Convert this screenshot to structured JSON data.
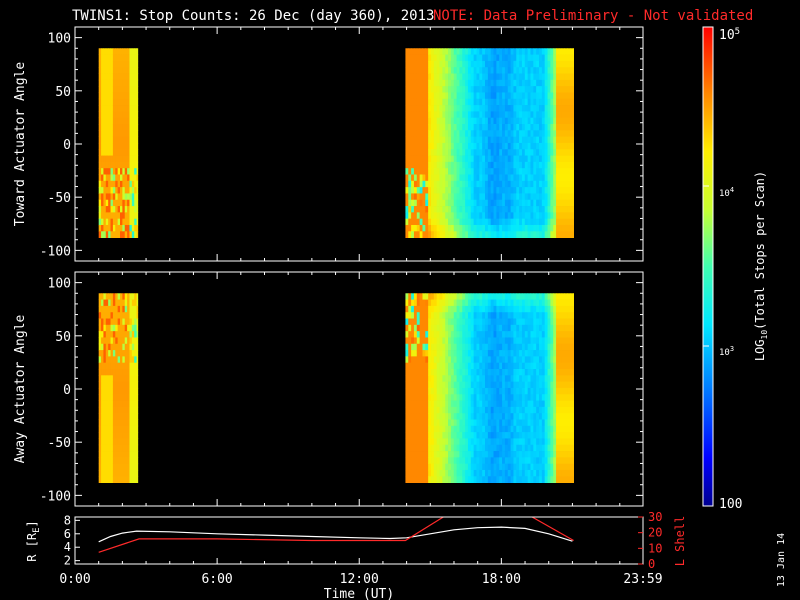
{
  "header": {
    "title": "TWINS1: Stop Counts: 26 Dec (day 360), 2013",
    "note": "NOTE: Data Preliminary - Not validated",
    "note_color": "#ff2a2a"
  },
  "side_date": "13 Jan 14",
  "chart_data": [
    {
      "type": "heatmap",
      "panel": "top",
      "ylabel": "Toward Actuator Angle",
      "ylim": [
        -110,
        110
      ],
      "yticks": [
        "100",
        "50",
        "0",
        "-50",
        "-100"
      ],
      "grid": false,
      "data_intervals_hours": [
        [
          1.0,
          2.65
        ],
        [
          13.95,
          21.05
        ]
      ],
      "angle_range": [
        -88,
        90
      ]
    },
    {
      "type": "heatmap",
      "panel": "middle",
      "ylabel": "Away Actuator Angle",
      "ylim": [
        -110,
        110
      ],
      "yticks": [
        "100",
        "50",
        "0",
        "-50",
        "-100"
      ],
      "grid": false,
      "data_intervals_hours": [
        [
          1.0,
          2.65
        ],
        [
          13.95,
          21.05
        ]
      ],
      "angle_range": [
        -88,
        90
      ]
    },
    {
      "type": "line",
      "panel": "bottom",
      "xlabel": "Time (UT)",
      "xlim": [
        0,
        23.98
      ],
      "xticks": [
        "0:00",
        "6:00",
        "12:00",
        "18:00",
        "23:59"
      ],
      "left_axis": {
        "label": "R [R",
        "label_sub": "E",
        "label_tail": "]",
        "ylim": [
          1.5,
          8.5
        ],
        "yticks": [
          "8",
          "6",
          "4",
          "2"
        ],
        "color": "#ffffff"
      },
      "right_axis": {
        "label": "L Shell",
        "ylim": [
          0,
          30
        ],
        "yticks": [
          "30",
          "20",
          "10",
          "0"
        ],
        "color": "#ff2a2a"
      },
      "series": [
        {
          "axis": "left",
          "color": "#ffffff",
          "x": [
            1.0,
            1.5,
            2.0,
            2.6,
            4,
            6,
            8,
            10,
            12,
            13.3,
            14.0,
            15,
            16,
            17,
            18,
            19,
            20,
            21.0
          ],
          "y": [
            4.8,
            5.6,
            6.1,
            6.4,
            6.3,
            6.0,
            5.8,
            5.6,
            5.4,
            5.3,
            5.4,
            6.0,
            6.6,
            6.9,
            7.0,
            6.8,
            6.0,
            4.9
          ]
        },
        {
          "axis": "right",
          "color": "#ff2a2a",
          "x": [
            1.0,
            2.7,
            6,
            10,
            13.95,
            15.55,
            15.9,
            19.3,
            21.05
          ],
          "y": [
            7.5,
            16.0,
            16.0,
            15.0,
            15.0,
            30,
            null,
            30,
            15.0
          ]
        }
      ]
    }
  ],
  "colorbar": {
    "label_pre": "LOG",
    "label_sub": "10",
    "label_post": "(Total Stops per Scan)",
    "range": [
      100,
      100000
    ],
    "tick_top_base": "10",
    "tick_top_exp": "5",
    "tick_mid_base": "10",
    "tick_mid_exp": "4",
    "tick_low_base": "10",
    "tick_low_exp": "3",
    "tick_bottom": "100"
  }
}
